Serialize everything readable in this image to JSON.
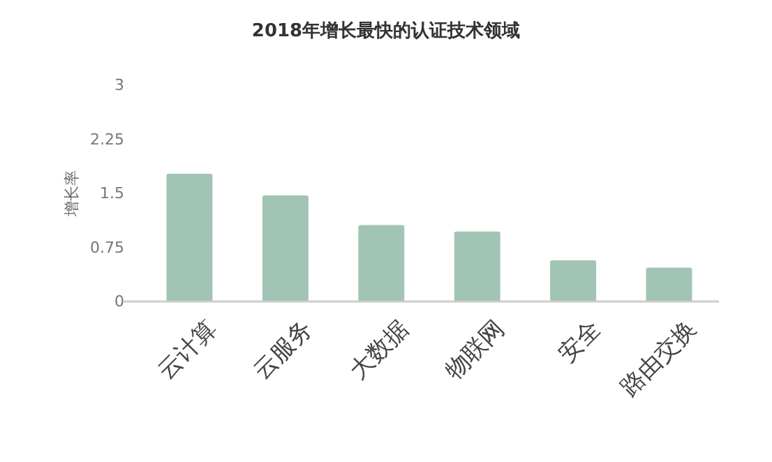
{
  "chart_data": {
    "type": "bar",
    "title": "2018年增长最快的认证技术领域",
    "ylabel": "增长率",
    "categories": [
      "云计算",
      "云服务",
      "大数据",
      "物联网",
      "安全",
      "路由交换"
    ],
    "values": [
      1.77,
      1.47,
      1.06,
      0.97,
      0.57,
      0.47
    ],
    "color": "#a2c4b4",
    "ylim": [
      0,
      3
    ],
    "yticks": [
      0,
      0.75,
      1.5,
      2.25,
      3
    ],
    "grid": false
  }
}
